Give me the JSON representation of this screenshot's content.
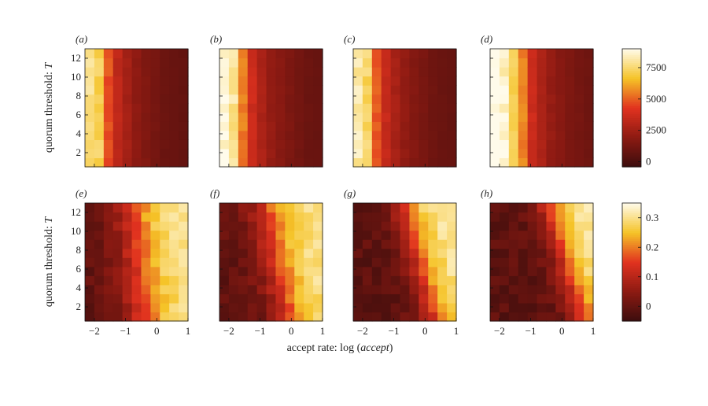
{
  "chart_data": {
    "type": "heatmap",
    "title": "",
    "xlabel_prefix": "accept rate: log (",
    "xlabel_var": "accept",
    "xlabel_suffix": ")",
    "ylabel_prefix": "quorum threshold: ",
    "ylabel_var": "T",
    "x_range": [
      -2.3,
      1
    ],
    "y_range": [
      0.5,
      13
    ],
    "x_ticks": [
      "−2",
      "−1",
      "0",
      "1"
    ],
    "x_tick_values": [
      -2,
      -1,
      0,
      1
    ],
    "y_ticks": [
      "2",
      "4",
      "6",
      "8",
      "10",
      "12"
    ],
    "y_tick_values": [
      2,
      4,
      6,
      8,
      10,
      12
    ],
    "grid": false,
    "rows": [
      {
        "panels": [
          "(a)",
          "(b)",
          "(c)",
          "(d)"
        ],
        "colorbar": {
          "min": -400,
          "max": 9000,
          "ticks": [
            0,
            2500,
            5000,
            7500
          ],
          "tick_labels": [
            "0",
            "2500",
            "5000",
            "7500"
          ]
        },
        "column_values": [
          [
            7800,
            7200,
            4800,
            3300,
            2600,
            2000,
            1600,
            1300,
            1000,
            900,
            800
          ],
          [
            8800,
            8000,
            5500,
            3700,
            2800,
            2200,
            1800,
            1500,
            1200,
            1000,
            900
          ],
          [
            8200,
            7400,
            5000,
            3500,
            2700,
            2100,
            1700,
            1400,
            1100,
            950,
            850
          ],
          [
            9000,
            8600,
            7400,
            5600,
            3700,
            2800,
            2200,
            1800,
            1500,
            1300,
            1100
          ]
        ]
      },
      {
        "panels": [
          "(e)",
          "(f)",
          "(g)",
          "(h)"
        ],
        "colorbar": {
          "min": -0.05,
          "max": 0.35,
          "ticks": [
            0,
            0.1,
            0.2,
            0.3
          ],
          "tick_labels": [
            "0",
            "0.1",
            "0.2",
            "0.3"
          ]
        },
        "centers": [
          -0.6,
          -0.4,
          -0.1,
          0.2
        ],
        "widths": [
          0.45,
          0.4,
          0.3,
          0.3
        ],
        "slopes": [
          0.03,
          0.06,
          0.08,
          0.09
        ]
      }
    ],
    "columns": 11,
    "rows_per_panel": 13
  },
  "colors": {
    "low": "#3b0d0d",
    "mid_low": "#8c1a12",
    "mid": "#e1321f",
    "mid_high": "#f5c327",
    "high": "#fffbea"
  }
}
